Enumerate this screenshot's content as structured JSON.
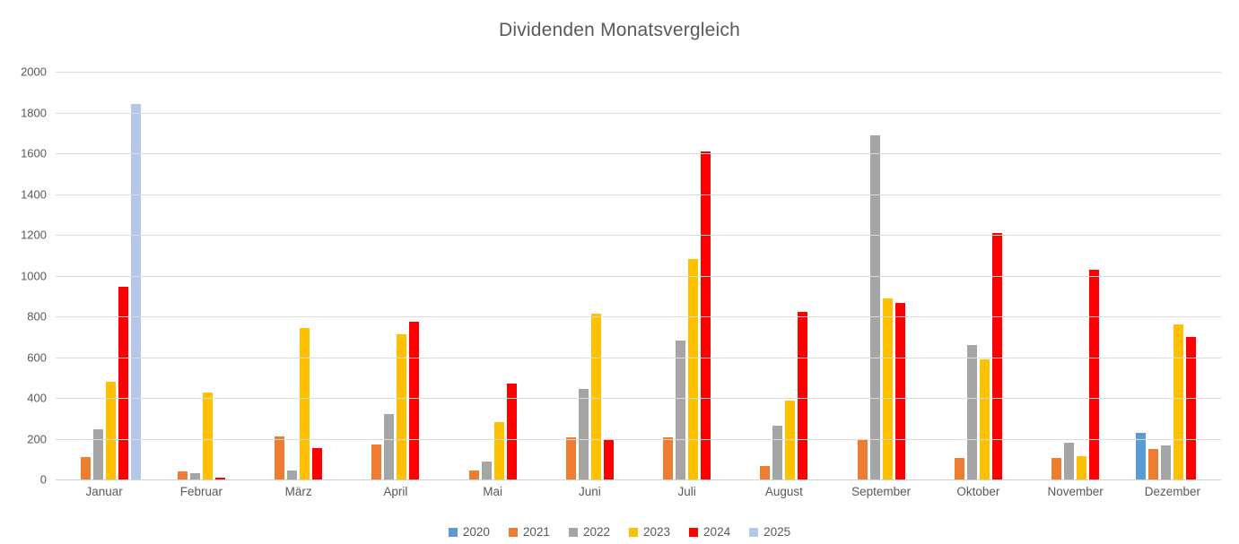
{
  "title": "Dividenden Monatsvergleich",
  "chart_data": {
    "type": "bar",
    "title": "Dividenden Monatsvergleich",
    "categories": [
      "Januar",
      "Februar",
      "März",
      "April",
      "Mai",
      "Juni",
      "Juli",
      "August",
      "September",
      "Oktober",
      "November",
      "Dezember"
    ],
    "series": [
      {
        "name": "2020",
        "color": "#5B9BD5",
        "values": [
          null,
          null,
          null,
          null,
          null,
          null,
          null,
          null,
          null,
          null,
          null,
          230
        ]
      },
      {
        "name": "2021",
        "color": "#ED7D31",
        "values": [
          110,
          40,
          210,
          170,
          45,
          205,
          205,
          65,
          195,
          105,
          105,
          150
        ]
      },
      {
        "name": "2022",
        "color": "#A5A5A5",
        "values": [
          245,
          30,
          45,
          320,
          90,
          445,
          680,
          265,
          1690,
          660,
          180,
          165
        ]
      },
      {
        "name": "2023",
        "color": "#FFC000",
        "values": [
          480,
          425,
          745,
          710,
          280,
          815,
          1080,
          385,
          890,
          590,
          115,
          760
        ]
      },
      {
        "name": "2024",
        "color": "#FF0000",
        "values": [
          945,
          10,
          155,
          775,
          470,
          195,
          1610,
          820,
          865,
          1210,
          1030,
          700
        ]
      },
      {
        "name": "2025",
        "color": "#B4C7E7",
        "values": [
          1840,
          null,
          null,
          null,
          null,
          null,
          null,
          null,
          null,
          null,
          null,
          null
        ]
      }
    ],
    "ylim": [
      0,
      2000
    ],
    "ytick_interval": 200,
    "yticks": [
      "0",
      "200",
      "400",
      "600",
      "800",
      "1000",
      "1200",
      "1400",
      "1600",
      "1800",
      "2000"
    ],
    "xlabel": "",
    "ylabel": "",
    "grid": true,
    "legend_position": "bottom",
    "text_color": "#595959",
    "gridline_color": "#dcdcdc"
  }
}
